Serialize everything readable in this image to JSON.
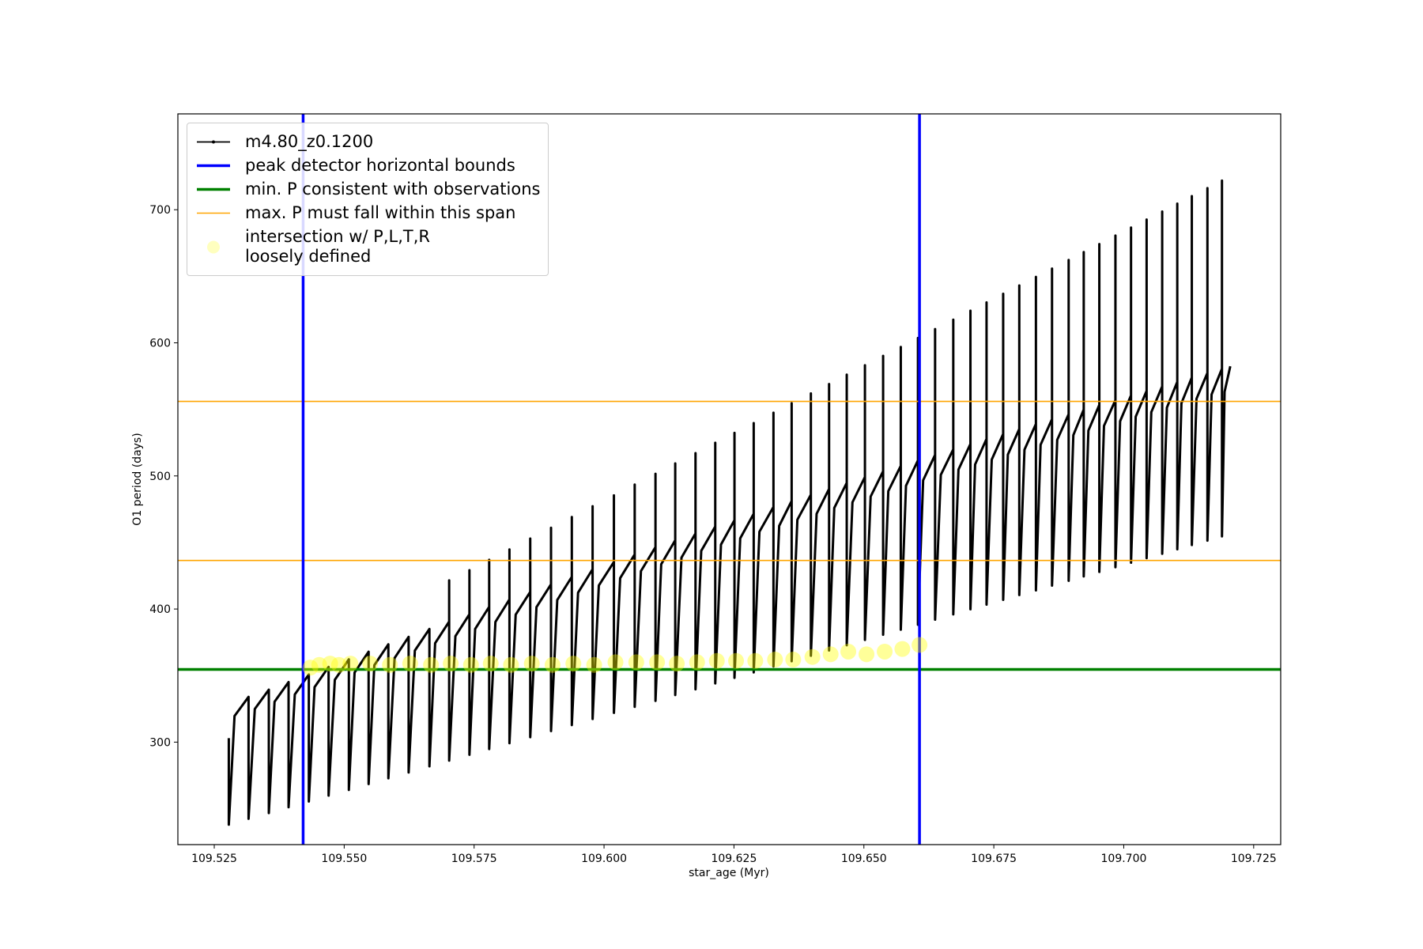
{
  "chart_data": {
    "type": "line",
    "xlabel": "star_age (Myr)",
    "ylabel": "O1 period (days)",
    "xlim": [
      109.518,
      109.7302
    ],
    "ylim": [
      223,
      772
    ],
    "xticks": [
      109.525,
      {
        "value": 109.55,
        "label": "109.550"
      },
      109.575,
      {
        "value": 109.6,
        "label": "109.600"
      },
      109.625,
      {
        "value": 109.65,
        "label": "109.650"
      },
      109.675,
      {
        "value": 109.7,
        "label": "109.700"
      },
      109.725
    ],
    "yticks": [
      300,
      400,
      500,
      600,
      700
    ],
    "legend": "upper left",
    "series": [
      {
        "name": "m4.80_z0.1200",
        "color": "#000000",
        "x": [
          109.5278,
          109.5278,
          109.5289,
          109.5316,
          109.5316,
          109.5328,
          109.5355,
          109.5355,
          109.5366,
          109.5393,
          109.5393,
          109.5405,
          109.5432,
          109.5432,
          109.5443,
          109.547,
          109.547,
          109.5482,
          109.5509,
          109.5509,
          109.552,
          109.5547,
          109.5547,
          109.5558,
          109.5585,
          109.5585,
          109.5597,
          109.5624,
          109.5624,
          109.5636,
          109.5664,
          109.5664,
          109.5675,
          109.5702,
          109.5702,
          109.5702,
          109.5714,
          109.5741,
          109.5741,
          109.5741,
          109.5752,
          109.5779,
          109.5779,
          109.5779,
          109.5791,
          109.5818,
          109.5818,
          109.5818,
          109.583,
          109.5858,
          109.5858,
          109.5858,
          109.587,
          109.5898,
          109.5898,
          109.5898,
          109.591,
          109.5938,
          109.5938,
          109.5938,
          109.595,
          109.5978,
          109.5978,
          109.5978,
          109.599,
          109.6019,
          109.6019,
          109.6019,
          109.6031,
          109.6059,
          109.6059,
          109.6059,
          109.6071,
          109.6099,
          109.6099,
          109.6099,
          109.611,
          109.6137,
          109.6137,
          109.6137,
          109.6149,
          109.6176,
          109.6176,
          109.6176,
          109.6187,
          109.6214,
          109.6214,
          109.6214,
          109.6225,
          109.6251,
          109.6251,
          109.6251,
          109.6262,
          109.6288,
          109.6288,
          109.6288,
          109.6299,
          109.6326,
          109.6326,
          109.6326,
          109.6337,
          109.6361,
          109.6361,
          109.6361,
          109.6372,
          109.6398,
          109.6398,
          109.6398,
          109.6409,
          109.6433,
          109.6433,
          109.6433,
          109.6443,
          109.6467,
          109.6467,
          109.6467,
          109.6478,
          109.6502,
          109.6502,
          109.6502,
          109.6513,
          109.6537,
          109.6537,
          109.6537,
          109.6547,
          109.6571,
          109.6571,
          109.6571,
          109.6581,
          109.6604,
          109.6604,
          109.6604,
          109.6614,
          109.6637,
          109.6637,
          109.6637,
          109.6648,
          109.6672,
          109.6672,
          109.6672,
          109.6682,
          109.6705,
          109.6705,
          109.6705,
          109.6714,
          109.6736,
          109.6736,
          109.6736,
          109.6746,
          109.6768,
          109.6768,
          109.6768,
          109.6777,
          109.6799,
          109.6799,
          109.6799,
          109.6809,
          109.6831,
          109.6831,
          109.6831,
          109.684,
          109.6862,
          109.6862,
          109.6862,
          109.6872,
          109.6894,
          109.6894,
          109.6894,
          109.6903,
          109.6923,
          109.6923,
          109.6923,
          109.6932,
          109.6953,
          109.6953,
          109.6953,
          109.6962,
          109.6984,
          109.6984,
          109.6984,
          109.6993,
          109.7014,
          109.7014,
          109.7014,
          109.7023,
          109.7044,
          109.7044,
          109.7044,
          109.7053,
          109.7074,
          109.7074,
          109.7074,
          109.7083,
          109.7103,
          109.7103,
          109.7103,
          109.7111,
          109.7131,
          109.7131,
          109.7131,
          109.714,
          109.7161,
          109.7161,
          109.7161,
          109.7169,
          109.7189,
          109.7189,
          109.7189,
          109.7194,
          109.7205
        ],
        "values": [
          303,
          238,
          319.6,
          334,
          242.4,
          324.9,
          339.4,
          246.7,
          330.3,
          345.1,
          251.1,
          335.8,
          350.8,
          255.4,
          341.3,
          356.5,
          259.8,
          346.8,
          362.2,
          264.1,
          352.3,
          367.9,
          268.5,
          357.8,
          373.5,
          272.8,
          363.2,
          379.1,
          277.2,
          368.8,
          385.0,
          281.8,
          374.3,
          390.6,
          421.5,
          286.1,
          379.6,
          396.1,
          429.2,
          290.5,
          385.0,
          401.7,
          437,
          294.8,
          390.3,
          407.2,
          444.8,
          299.2,
          395.8,
          412.9,
          452.9,
          303.7,
          401.4,
          418.6,
          461.0,
          308.3,
          406.8,
          424.2,
          469.1,
          312.8,
          412.3,
          429.9,
          477.2,
          317.4,
          417.7,
          435.4,
          485.4,
          322.0,
          423.2,
          441.0,
          493.5,
          326.5,
          428.5,
          446.5,
          501.6,
          331.0,
          433.6,
          451.7,
          509.4,
          335.4,
          438.6,
          456.8,
          517.1,
          339.7,
          443.7,
          462.0,
          524.9,
          344.1,
          448.4,
          466.8,
          532.3,
          348.3,
          453.1,
          471.6,
          539.7,
          352.4,
          458.1,
          476.7,
          547.5,
          356.8,
          462.5,
          481.2,
          554.6,
          360.8,
          467.1,
          485.9,
          562.0,
          364.9,
          471.5,
          490.3,
          569.0,
          368.9,
          475.9,
          494.8,
          576.1,
          372.8,
          480.2,
          499.2,
          583.1,
          376.8,
          484.5,
          503.5,
          590.2,
          380.7,
          488.6,
          507.6,
          596.9,
          384.5,
          492.6,
          511.7,
          603.6,
          388.2,
          496.7,
          515.8,
          610.3,
          392.0,
          500.8,
          520.0,
          617.4,
          396.0,
          504.8,
          524.0,
          624.1,
          399.8,
          508.6,
          527.8,
          630.4,
          403.3,
          512.3,
          531.5,
          636.8,
          406.9,
          516.0,
          535.3,
          643.1,
          410.5,
          519.7,
          539.0,
          649.5,
          414.0,
          523.4,
          542.7,
          655.8,
          417.6,
          527.1,
          546.4,
          662.2,
          421.2,
          530.6,
          549.9,
          668.2,
          424.5,
          534.1,
          553.4,
          674.2,
          427.9,
          537.6,
          557.0,
          680.6,
          431.4,
          541.1,
          560.5,
          686.6,
          434.8,
          544.5,
          563.9,
          692.6,
          438.2,
          547.9,
          567.3,
          698.6,
          441.5,
          551.3,
          570.7,
          704.6,
          444.9,
          554.6,
          574.0,
          710.2,
          448.1,
          558.0,
          577.4,
          716.2,
          451.4,
          561.2,
          580.6,
          721.9,
          454.6,
          563.2,
          582.4
        ]
      }
    ],
    "vlines": {
      "name": "peak detector horizontal bounds",
      "color": "#0000ff",
      "values": [
        109.5421,
        109.6607
      ]
    },
    "hlines": [
      {
        "name": "min. P consistent with observations",
        "color": "#008000",
        "values": [
          354.6
        ]
      },
      {
        "name": "max. P must fall within this span",
        "color": "#ffa500",
        "values": [
          436.5,
          556
        ]
      }
    ],
    "scatter": {
      "name": "intersection w/ P,L,T,R\nloosely defined",
      "color": "#ffff00",
      "x": [
        109.5435,
        109.5452,
        109.5473,
        109.549,
        109.5512,
        109.555,
        109.5588,
        109.5627,
        109.5667,
        109.5705,
        109.5744,
        109.5782,
        109.5821,
        109.5861,
        109.5901,
        109.5941,
        109.5981,
        109.6022,
        109.6062,
        109.6102,
        109.614,
        109.6179,
        109.6217,
        109.6254,
        109.6291,
        109.6329,
        109.6364,
        109.6401,
        109.6436,
        109.647,
        109.6505,
        109.654,
        109.6574,
        109.6607
      ],
      "values": [
        356,
        358,
        359,
        358,
        359,
        359,
        358,
        359,
        358,
        359,
        358,
        359,
        358,
        359,
        358,
        359,
        358,
        360,
        360,
        360,
        359,
        360,
        361,
        361,
        361,
        362,
        362,
        364,
        366,
        368,
        366,
        368,
        370,
        373
      ]
    }
  }
}
